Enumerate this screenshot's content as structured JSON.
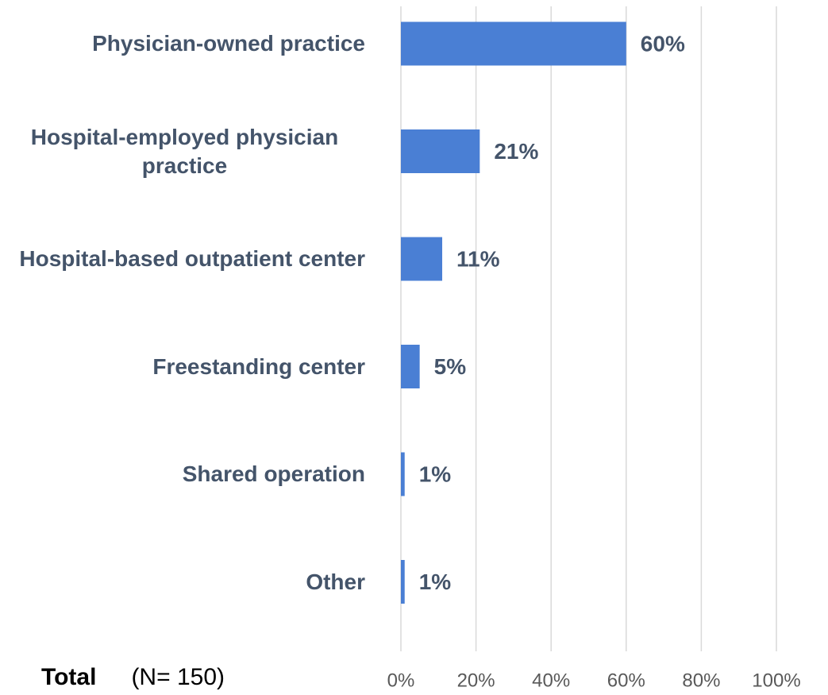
{
  "chart_data": {
    "type": "bar",
    "orientation": "horizontal",
    "categories": [
      "Physician-owned practice",
      "Hospital-employed physician practice",
      "Hospital-based outpatient center",
      "Freestanding center",
      "Shared operation",
      "Other"
    ],
    "values": [
      60,
      21,
      11,
      5,
      1,
      1
    ],
    "value_labels": [
      "60%",
      "21%",
      "11%",
      "5%",
      "1%",
      "1%"
    ],
    "color": "#4a7fd4",
    "xlim": [
      0,
      100
    ],
    "xticks": [
      {
        "value": 0,
        "label": "0%"
      },
      {
        "value": 20,
        "label": "20%"
      },
      {
        "value": 40,
        "label": "40%"
      },
      {
        "value": 60,
        "label": "60%"
      },
      {
        "value": 80,
        "label": "80%"
      },
      {
        "value": 100,
        "label": "100%"
      }
    ],
    "grid": true,
    "note_label": "Total",
    "note": "(N= 150)"
  }
}
